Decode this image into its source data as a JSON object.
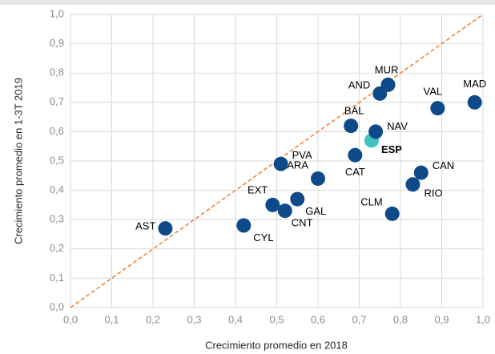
{
  "chart_data": {
    "type": "scatter",
    "x_label": "Crecimiento promedio  en 2018",
    "y_label": "Crecimiento promedio  en 1-3T 2019",
    "labels": [
      "AST",
      "CYL",
      "EXT",
      "CNT",
      "GAL",
      "ARA",
      "PVA",
      "CAT",
      "ESP",
      "BAL",
      "NAV",
      "AND",
      "MUR",
      "VAL",
      "MAD",
      "CAN",
      "RIO",
      "CLM"
    ],
    "x": [
      0.23,
      0.42,
      0.49,
      0.52,
      0.55,
      0.6,
      0.51,
      0.69,
      0.73,
      0.68,
      0.74,
      0.75,
      0.77,
      0.89,
      0.98,
      0.85,
      0.83,
      0.78
    ],
    "y": [
      0.27,
      0.28,
      0.35,
      0.33,
      0.37,
      0.44,
      0.49,
      0.52,
      0.57,
      0.62,
      0.6,
      0.73,
      0.76,
      0.68,
      0.7,
      0.46,
      0.42,
      0.32
    ],
    "color": "#0e4a8a",
    "colors": [
      "#0e4a8a",
      "#0e4a8a",
      "#0e4a8a",
      "#0e4a8a",
      "#0e4a8a",
      "#0e4a8a",
      "#0e4a8a",
      "#0e4a8a",
      "#3fc4c4",
      "#0e4a8a",
      "#0e4a8a",
      "#0e4a8a",
      "#0e4a8a",
      "#0e4a8a",
      "#0e4a8a",
      "#0e4a8a",
      "#0e4a8a",
      "#0e4a8a"
    ],
    "xlim": [
      0,
      1
    ],
    "ylim": [
      0,
      1
    ],
    "xticks": [
      {
        "value": 0,
        "label": "0,0"
      },
      {
        "value": 0.1,
        "label": "0,1"
      },
      {
        "value": 0.2,
        "label": "0,2"
      },
      {
        "value": 0.3,
        "label": "0,3"
      },
      {
        "value": 0.4,
        "label": "0,4"
      },
      {
        "value": 0.5,
        "label": "0,5"
      },
      {
        "value": 0.6,
        "label": "0,6"
      },
      {
        "value": 0.7,
        "label": "0,7"
      },
      {
        "value": 0.8,
        "label": "0,8"
      },
      {
        "value": 0.9,
        "label": "0,9"
      },
      {
        "value": 1,
        "label": "1,0"
      }
    ],
    "yticks": [
      {
        "value": 0,
        "label": "0,0"
      },
      {
        "value": 0.1,
        "label": "0,1"
      },
      {
        "value": 0.2,
        "label": "0,2"
      },
      {
        "value": 0.3,
        "label": "0,3"
      },
      {
        "value": 0.4,
        "label": "0,4"
      },
      {
        "value": 0.5,
        "label": "0,5"
      },
      {
        "value": 0.6,
        "label": "0,6"
      },
      {
        "value": 0.7,
        "label": "0,7"
      },
      {
        "value": 0.8,
        "label": "0,8"
      },
      {
        "value": 0.9,
        "label": "0,9"
      },
      {
        "value": 1,
        "label": "1,0"
      }
    ],
    "grid": true
  }
}
